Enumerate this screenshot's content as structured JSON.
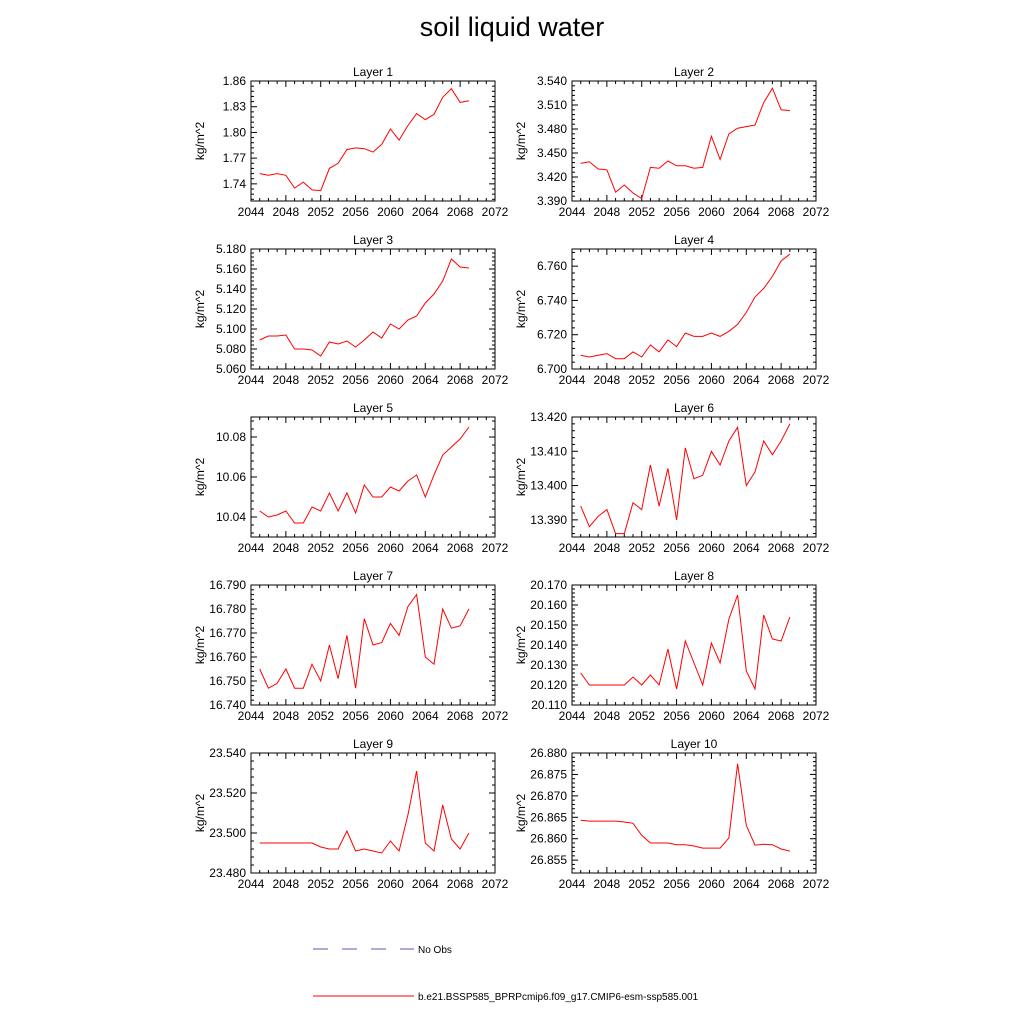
{
  "figure": {
    "title": "soil liquid water",
    "legend": [
      {
        "label": "No Obs",
        "color": "#5a5ab4",
        "style": "dashed"
      },
      {
        "label": "b.e21.BSSP585_BPRPcmip6.f09_g17.CMIP6-esm-ssp585.001",
        "color": "#ff0000",
        "style": "solid"
      }
    ]
  },
  "chart_data": [
    {
      "type": "line",
      "title": "Layer 1",
      "ylabel": "kg/m^2",
      "xlim": [
        2044,
        2072
      ],
      "xticks": [
        "2044",
        "2048",
        "2052",
        "2056",
        "2060",
        "2064",
        "2068",
        "2072"
      ],
      "ylim": [
        1.72,
        1.86
      ],
      "yticks": [
        "1.74",
        "1.77",
        "1.80",
        "1.83",
        "1.86"
      ],
      "series": [
        {
          "color": "#ff0000",
          "x": [
            2045,
            2046,
            2047,
            2048,
            2049,
            2050,
            2051,
            2052,
            2053,
            2054,
            2055,
            2056,
            2057,
            2058,
            2059,
            2060,
            2061,
            2062,
            2063,
            2064,
            2065,
            2066,
            2067,
            2068,
            2069
          ],
          "y": [
            1.752,
            1.75,
            1.752,
            1.75,
            1.735,
            1.742,
            1.733,
            1.732,
            1.758,
            1.764,
            1.78,
            1.782,
            1.781,
            1.777,
            1.786,
            1.804,
            1.791,
            1.808,
            1.822,
            1.815,
            1.821,
            1.841,
            1.851,
            1.835,
            1.837
          ]
        }
      ]
    },
    {
      "type": "line",
      "title": "Layer 2",
      "ylabel": "kg/m^2",
      "xlim": [
        2044,
        2072
      ],
      "xticks": [
        "2044",
        "2048",
        "2052",
        "2056",
        "2060",
        "2064",
        "2068",
        "2072"
      ],
      "ylim": [
        3.39,
        3.54
      ],
      "yticks": [
        "3.390",
        "3.420",
        "3.450",
        "3.480",
        "3.510",
        "3.540"
      ],
      "series": [
        {
          "color": "#ff0000",
          "x": [
            2045,
            2046,
            2047,
            2048,
            2049,
            2050,
            2051,
            2052,
            2053,
            2054,
            2055,
            2056,
            2057,
            2058,
            2059,
            2060,
            2061,
            2062,
            2063,
            2064,
            2065,
            2066,
            2067,
            2068,
            2069
          ],
          "y": [
            3.437,
            3.439,
            3.43,
            3.429,
            3.401,
            3.41,
            3.4,
            3.393,
            3.432,
            3.431,
            3.44,
            3.434,
            3.434,
            3.431,
            3.432,
            3.471,
            3.442,
            3.474,
            3.481,
            3.483,
            3.485,
            3.513,
            3.531,
            3.504,
            3.503
          ]
        }
      ]
    },
    {
      "type": "line",
      "title": "Layer 3",
      "ylabel": "kg/m^2",
      "xlim": [
        2044,
        2072
      ],
      "xticks": [
        "2044",
        "2048",
        "2052",
        "2056",
        "2060",
        "2064",
        "2068",
        "2072"
      ],
      "ylim": [
        5.06,
        5.18
      ],
      "yticks": [
        "5.060",
        "5.080",
        "5.100",
        "5.120",
        "5.140",
        "5.160",
        "5.180"
      ],
      "series": [
        {
          "color": "#ff0000",
          "x": [
            2045,
            2046,
            2047,
            2048,
            2049,
            2050,
            2051,
            2052,
            2053,
            2054,
            2055,
            2056,
            2057,
            2058,
            2059,
            2060,
            2061,
            2062,
            2063,
            2064,
            2065,
            2066,
            2067,
            2068,
            2069
          ],
          "y": [
            5.089,
            5.093,
            5.093,
            5.094,
            5.08,
            5.08,
            5.079,
            5.073,
            5.087,
            5.085,
            5.088,
            5.082,
            5.089,
            5.097,
            5.091,
            5.105,
            5.1,
            5.109,
            5.113,
            5.126,
            5.135,
            5.148,
            5.17,
            5.162,
            5.161
          ]
        }
      ]
    },
    {
      "type": "line",
      "title": "Layer 4",
      "ylabel": "kg/m^2",
      "xlim": [
        2044,
        2072
      ],
      "xticks": [
        "2044",
        "2048",
        "2052",
        "2056",
        "2060",
        "2064",
        "2068",
        "2072"
      ],
      "ylim": [
        6.7,
        6.77
      ],
      "yticks": [
        "6.700",
        "6.720",
        "6.740",
        "6.760"
      ],
      "series": [
        {
          "color": "#ff0000",
          "x": [
            2045,
            2046,
            2047,
            2048,
            2049,
            2050,
            2051,
            2052,
            2053,
            2054,
            2055,
            2056,
            2057,
            2058,
            2059,
            2060,
            2061,
            2062,
            2063,
            2064,
            2065,
            2066,
            2067,
            2068,
            2069
          ],
          "y": [
            6.708,
            6.707,
            6.708,
            6.709,
            6.706,
            6.706,
            6.71,
            6.707,
            6.714,
            6.71,
            6.717,
            6.713,
            6.721,
            6.719,
            6.719,
            6.721,
            6.719,
            6.722,
            6.726,
            6.733,
            6.742,
            6.747,
            6.754,
            6.763,
            6.767
          ]
        }
      ]
    },
    {
      "type": "line",
      "title": "Layer 5",
      "ylabel": "kg/m^2",
      "xlim": [
        2044,
        2072
      ],
      "xticks": [
        "2044",
        "2048",
        "2052",
        "2056",
        "2060",
        "2064",
        "2068",
        "2072"
      ],
      "ylim": [
        10.03,
        10.09
      ],
      "yticks": [
        "10.04",
        "10.06",
        "10.08"
      ],
      "series": [
        {
          "color": "#ff0000",
          "x": [
            2045,
            2046,
            2047,
            2048,
            2049,
            2050,
            2051,
            2052,
            2053,
            2054,
            2055,
            2056,
            2057,
            2058,
            2059,
            2060,
            2061,
            2062,
            2063,
            2064,
            2065,
            2066,
            2067,
            2068,
            2069
          ],
          "y": [
            10.043,
            10.04,
            10.041,
            10.043,
            10.037,
            10.037,
            10.045,
            10.043,
            10.052,
            10.043,
            10.052,
            10.042,
            10.056,
            10.05,
            10.05,
            10.055,
            10.053,
            10.058,
            10.061,
            10.05,
            10.061,
            10.071,
            10.075,
            10.079,
            10.085
          ]
        }
      ]
    },
    {
      "type": "line",
      "title": "Layer 6",
      "ylabel": "kg/m^2",
      "xlim": [
        2044,
        2072
      ],
      "xticks": [
        "2044",
        "2048",
        "2052",
        "2056",
        "2060",
        "2064",
        "2068",
        "2072"
      ],
      "ylim": [
        13.385,
        13.42
      ],
      "yticks": [
        "13.390",
        "13.400",
        "13.410",
        "13.420"
      ],
      "series": [
        {
          "color": "#ff0000",
          "x": [
            2045,
            2046,
            2047,
            2048,
            2049,
            2050,
            2051,
            2052,
            2053,
            2054,
            2055,
            2056,
            2057,
            2058,
            2059,
            2060,
            2061,
            2062,
            2063,
            2064,
            2065,
            2066,
            2067,
            2068,
            2069
          ],
          "y": [
            13.394,
            13.388,
            13.391,
            13.393,
            13.386,
            13.386,
            13.395,
            13.393,
            13.406,
            13.394,
            13.405,
            13.39,
            13.411,
            13.402,
            13.403,
            13.41,
            13.406,
            13.413,
            13.417,
            13.4,
            13.404,
            13.413,
            13.409,
            13.413,
            13.418
          ]
        }
      ]
    },
    {
      "type": "line",
      "title": "Layer 7",
      "ylabel": "kg/m^2",
      "xlim": [
        2044,
        2072
      ],
      "xticks": [
        "2044",
        "2048",
        "2052",
        "2056",
        "2060",
        "2064",
        "2068",
        "2072"
      ],
      "ylim": [
        16.74,
        16.79
      ],
      "yticks": [
        "16.740",
        "16.750",
        "16.760",
        "16.770",
        "16.780",
        "16.790"
      ],
      "series": [
        {
          "color": "#ff0000",
          "x": [
            2045,
            2046,
            2047,
            2048,
            2049,
            2050,
            2051,
            2052,
            2053,
            2054,
            2055,
            2056,
            2057,
            2058,
            2059,
            2060,
            2061,
            2062,
            2063,
            2064,
            2065,
            2066,
            2067,
            2068,
            2069
          ],
          "y": [
            16.755,
            16.747,
            16.749,
            16.755,
            16.747,
            16.747,
            16.757,
            16.75,
            16.765,
            16.751,
            16.769,
            16.747,
            16.776,
            16.765,
            16.766,
            16.774,
            16.769,
            16.781,
            16.786,
            16.76,
            16.757,
            16.78,
            16.772,
            16.773,
            16.78
          ]
        }
      ]
    },
    {
      "type": "line",
      "title": "Layer 8",
      "ylabel": "kg/m^2",
      "xlim": [
        2044,
        2072
      ],
      "xticks": [
        "2044",
        "2048",
        "2052",
        "2056",
        "2060",
        "2064",
        "2068",
        "2072"
      ],
      "ylim": [
        20.11,
        20.17
      ],
      "yticks": [
        "20.110",
        "20.120",
        "20.130",
        "20.140",
        "20.150",
        "20.160",
        "20.170"
      ],
      "series": [
        {
          "color": "#ff0000",
          "x": [
            2045,
            2046,
            2047,
            2048,
            2049,
            2050,
            2051,
            2052,
            2053,
            2054,
            2055,
            2056,
            2057,
            2058,
            2059,
            2060,
            2061,
            2062,
            2063,
            2064,
            2065,
            2066,
            2067,
            2068,
            2069
          ],
          "y": [
            20.126,
            20.12,
            20.12,
            20.12,
            20.12,
            20.12,
            20.124,
            20.12,
            20.125,
            20.12,
            20.138,
            20.118,
            20.142,
            20.131,
            20.12,
            20.141,
            20.131,
            20.153,
            20.165,
            20.127,
            20.118,
            20.155,
            20.143,
            20.142,
            20.154
          ]
        }
      ]
    },
    {
      "type": "line",
      "title": "Layer 9",
      "ylabel": "kg/m^2",
      "xlim": [
        2044,
        2072
      ],
      "xticks": [
        "2044",
        "2048",
        "2052",
        "2056",
        "2060",
        "2064",
        "2068",
        "2072"
      ],
      "ylim": [
        23.48,
        23.54
      ],
      "yticks": [
        "23.480",
        "23.500",
        "23.520",
        "23.540"
      ],
      "series": [
        {
          "color": "#ff0000",
          "x": [
            2045,
            2046,
            2047,
            2048,
            2049,
            2050,
            2051,
            2052,
            2053,
            2054,
            2055,
            2056,
            2057,
            2058,
            2059,
            2060,
            2061,
            2062,
            2063,
            2064,
            2065,
            2066,
            2067,
            2068,
            2069
          ],
          "y": [
            23.495,
            23.495,
            23.495,
            23.495,
            23.495,
            23.495,
            23.495,
            23.493,
            23.492,
            23.492,
            23.501,
            23.491,
            23.492,
            23.491,
            23.49,
            23.496,
            23.491,
            23.509,
            23.531,
            23.495,
            23.491,
            23.514,
            23.497,
            23.492,
            23.5
          ]
        }
      ]
    },
    {
      "type": "line",
      "title": "Layer 10",
      "ylabel": "kg/m^2",
      "xlim": [
        2044,
        2072
      ],
      "xticks": [
        "2044",
        "2048",
        "2052",
        "2056",
        "2060",
        "2064",
        "2068",
        "2072"
      ],
      "ylim": [
        26.852,
        26.88
      ],
      "yticks": [
        "26.855",
        "26.860",
        "26.865",
        "26.870",
        "26.875",
        "26.880"
      ],
      "series": [
        {
          "color": "#ff0000",
          "x": [
            2045,
            2046,
            2047,
            2048,
            2049,
            2050,
            2051,
            2052,
            2053,
            2054,
            2055,
            2056,
            2057,
            2058,
            2059,
            2060,
            2061,
            2062,
            2063,
            2064,
            2065,
            2066,
            2067,
            2068,
            2069
          ],
          "y": [
            26.8643,
            26.8641,
            26.8641,
            26.8641,
            26.8641,
            26.8639,
            26.8636,
            26.8608,
            26.859,
            26.859,
            26.859,
            26.8586,
            26.8586,
            26.8583,
            26.8578,
            26.8578,
            26.8578,
            26.8602,
            26.8775,
            26.8631,
            26.8585,
            26.8587,
            26.8586,
            26.8576,
            26.8571
          ]
        }
      ]
    }
  ]
}
